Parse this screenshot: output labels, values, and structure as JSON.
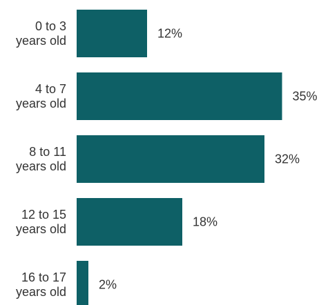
{
  "chart_data": {
    "type": "bar",
    "orientation": "horizontal",
    "categories": [
      [
        "0 to 3",
        "years old"
      ],
      [
        "4 to 7",
        "years old"
      ],
      [
        "8 to 11",
        "years old"
      ],
      [
        "12 to 15",
        "years old"
      ],
      [
        "16 to 17",
        "years old"
      ]
    ],
    "values": [
      12,
      35,
      32,
      18,
      2
    ],
    "value_labels": [
      "12%",
      "35%",
      "32%",
      "18%",
      "2%"
    ],
    "unit": "%",
    "bar_color": "#0e6066",
    "grid": false,
    "legend": "none"
  }
}
